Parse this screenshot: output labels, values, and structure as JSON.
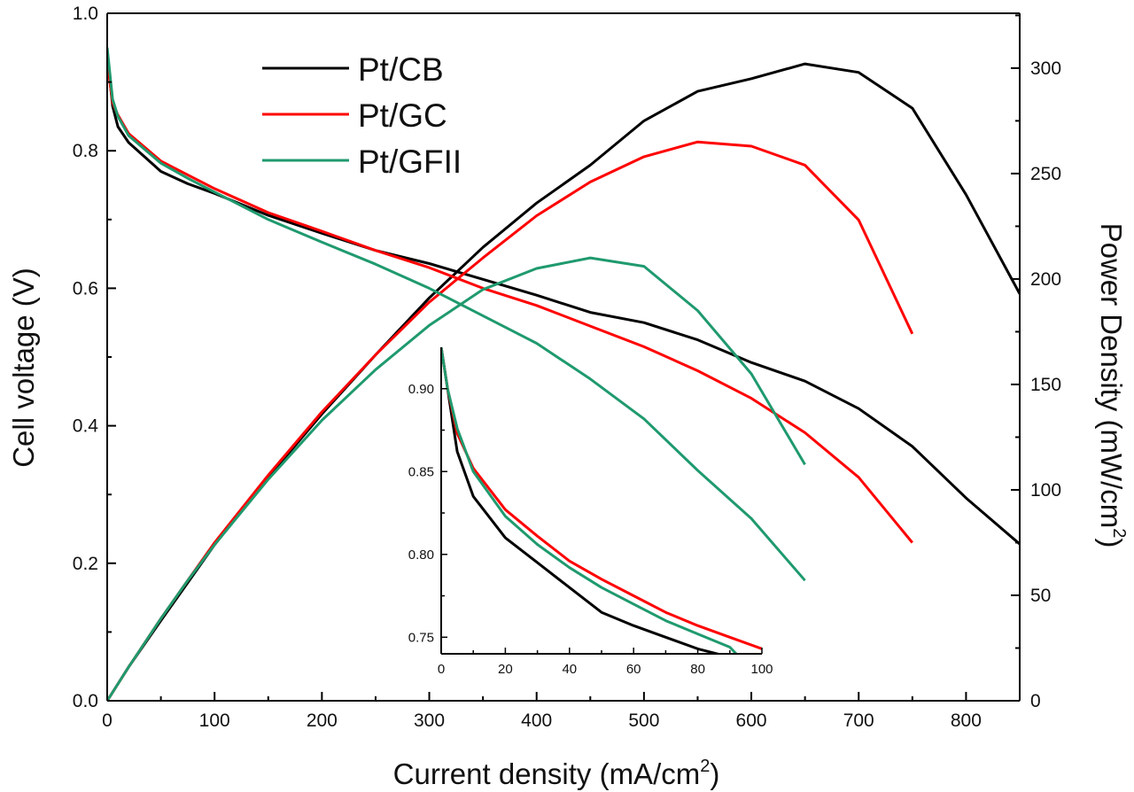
{
  "chart_data": {
    "type": "line",
    "title": "",
    "xlabel": "Current density (mA/cm",
    "xlabel_sup": "2",
    "xlabel_end": ")",
    "ylabel_left": "Cell voltage (V)",
    "ylabel_right": "Power Density (mW/cm",
    "ylabel_right_sup": "2",
    "ylabel_right_end": ")",
    "xlim": [
      0,
      850
    ],
    "ylim_left": [
      0.0,
      1.0
    ],
    "ylim_right": [
      0,
      326
    ],
    "x_ticks": [
      0,
      100,
      200,
      300,
      400,
      500,
      600,
      700,
      800
    ],
    "y_left_ticks": [
      0.0,
      0.2,
      0.4,
      0.6,
      0.8,
      1.0
    ],
    "y_left_tick_labels": [
      "0.0",
      "0.2",
      "0.4",
      "0.6",
      "0.8",
      "1.0"
    ],
    "y_right_ticks": [
      0,
      50,
      100,
      150,
      200,
      250,
      300
    ],
    "legend": {
      "position": "top-left",
      "entries": [
        {
          "name": "Pt/CB",
          "color": "#000000"
        },
        {
          "name": "Pt/GC",
          "color": "#ff0000"
        },
        {
          "name": "Pt/GFII",
          "color": "#1f9a6e"
        }
      ]
    },
    "series": [
      {
        "name": "Pt/CB",
        "color": "#000000",
        "x": [
          0,
          5,
          10,
          20,
          50,
          75,
          100,
          150,
          200,
          250,
          300,
          350,
          400,
          450,
          500,
          550,
          600,
          650,
          700,
          750,
          800,
          850
        ],
        "voltage": [
          0.94,
          0.865,
          0.835,
          0.812,
          0.77,
          0.752,
          0.738,
          0.706,
          0.68,
          0.655,
          0.636,
          0.613,
          0.59,
          0.565,
          0.55,
          0.525,
          0.492,
          0.465,
          0.425,
          0.37,
          0.295,
          0.228
        ],
        "power": [
          0,
          4,
          8,
          16,
          38,
          56,
          74,
          106,
          136,
          164,
          191,
          215,
          236,
          254,
          275,
          289,
          295,
          302,
          298,
          281,
          240,
          193
        ]
      },
      {
        "name": "Pt/GC",
        "color": "#ff0000",
        "x": [
          0,
          5,
          10,
          20,
          50,
          75,
          100,
          150,
          200,
          250,
          300,
          350,
          400,
          450,
          500,
          550,
          600,
          650,
          700,
          750
        ],
        "voltage": [
          0.93,
          0.87,
          0.852,
          0.825,
          0.785,
          0.765,
          0.745,
          0.71,
          0.683,
          0.655,
          0.63,
          0.6,
          0.575,
          0.545,
          0.515,
          0.48,
          0.44,
          0.39,
          0.325,
          0.23
        ],
        "power": [
          0,
          4,
          8,
          16,
          39,
          57,
          75,
          107,
          137,
          164,
          189,
          210,
          230,
          246,
          258,
          265,
          263,
          254,
          228,
          174
        ]
      },
      {
        "name": "Pt/GFII",
        "color": "#1f9a6e",
        "x": [
          0,
          5,
          10,
          20,
          50,
          75,
          100,
          150,
          200,
          250,
          300,
          350,
          400,
          450,
          500,
          550,
          600,
          650
        ],
        "voltage": [
          0.95,
          0.875,
          0.85,
          0.822,
          0.782,
          0.76,
          0.74,
          0.7,
          0.667,
          0.635,
          0.6,
          0.56,
          0.52,
          0.468,
          0.41,
          0.335,
          0.265,
          0.175
        ],
        "power": [
          0,
          4,
          8,
          16,
          39,
          57,
          74,
          105,
          133,
          157,
          178,
          195,
          205,
          210,
          206,
          185,
          155,
          112
        ]
      }
    ],
    "inset": {
      "xlim": [
        0,
        100
      ],
      "ylim": [
        0.74,
        0.925
      ],
      "x_ticks": [
        0,
        20,
        40,
        60,
        80,
        100
      ],
      "y_ticks": [
        0.75,
        0.8,
        0.85,
        0.9
      ],
      "y_tick_labels": [
        "0.75",
        "0.80",
        "0.85",
        "0.90"
      ],
      "series": [
        {
          "name": "Pt/CB",
          "color": "#000000",
          "x": [
            0,
            2,
            5,
            10,
            20,
            30,
            40,
            50,
            60,
            70,
            80,
            90
          ],
          "y": [
            0.925,
            0.9,
            0.862,
            0.835,
            0.81,
            0.795,
            0.78,
            0.765,
            0.757,
            0.75,
            0.743,
            0.738
          ]
        },
        {
          "name": "Pt/GC",
          "color": "#ff0000",
          "x": [
            0,
            2,
            5,
            10,
            20,
            30,
            40,
            50,
            60,
            70,
            80,
            90,
            100
          ],
          "y": [
            0.925,
            0.9,
            0.873,
            0.852,
            0.827,
            0.811,
            0.796,
            0.785,
            0.775,
            0.765,
            0.757,
            0.75,
            0.743
          ]
        },
        {
          "name": "Pt/GFII",
          "color": "#1f9a6e",
          "x": [
            0,
            2,
            5,
            10,
            20,
            30,
            40,
            50,
            60,
            70,
            80,
            90,
            92
          ],
          "y": [
            0.925,
            0.9,
            0.876,
            0.85,
            0.823,
            0.806,
            0.792,
            0.78,
            0.77,
            0.76,
            0.752,
            0.744,
            0.74
          ]
        }
      ]
    }
  }
}
